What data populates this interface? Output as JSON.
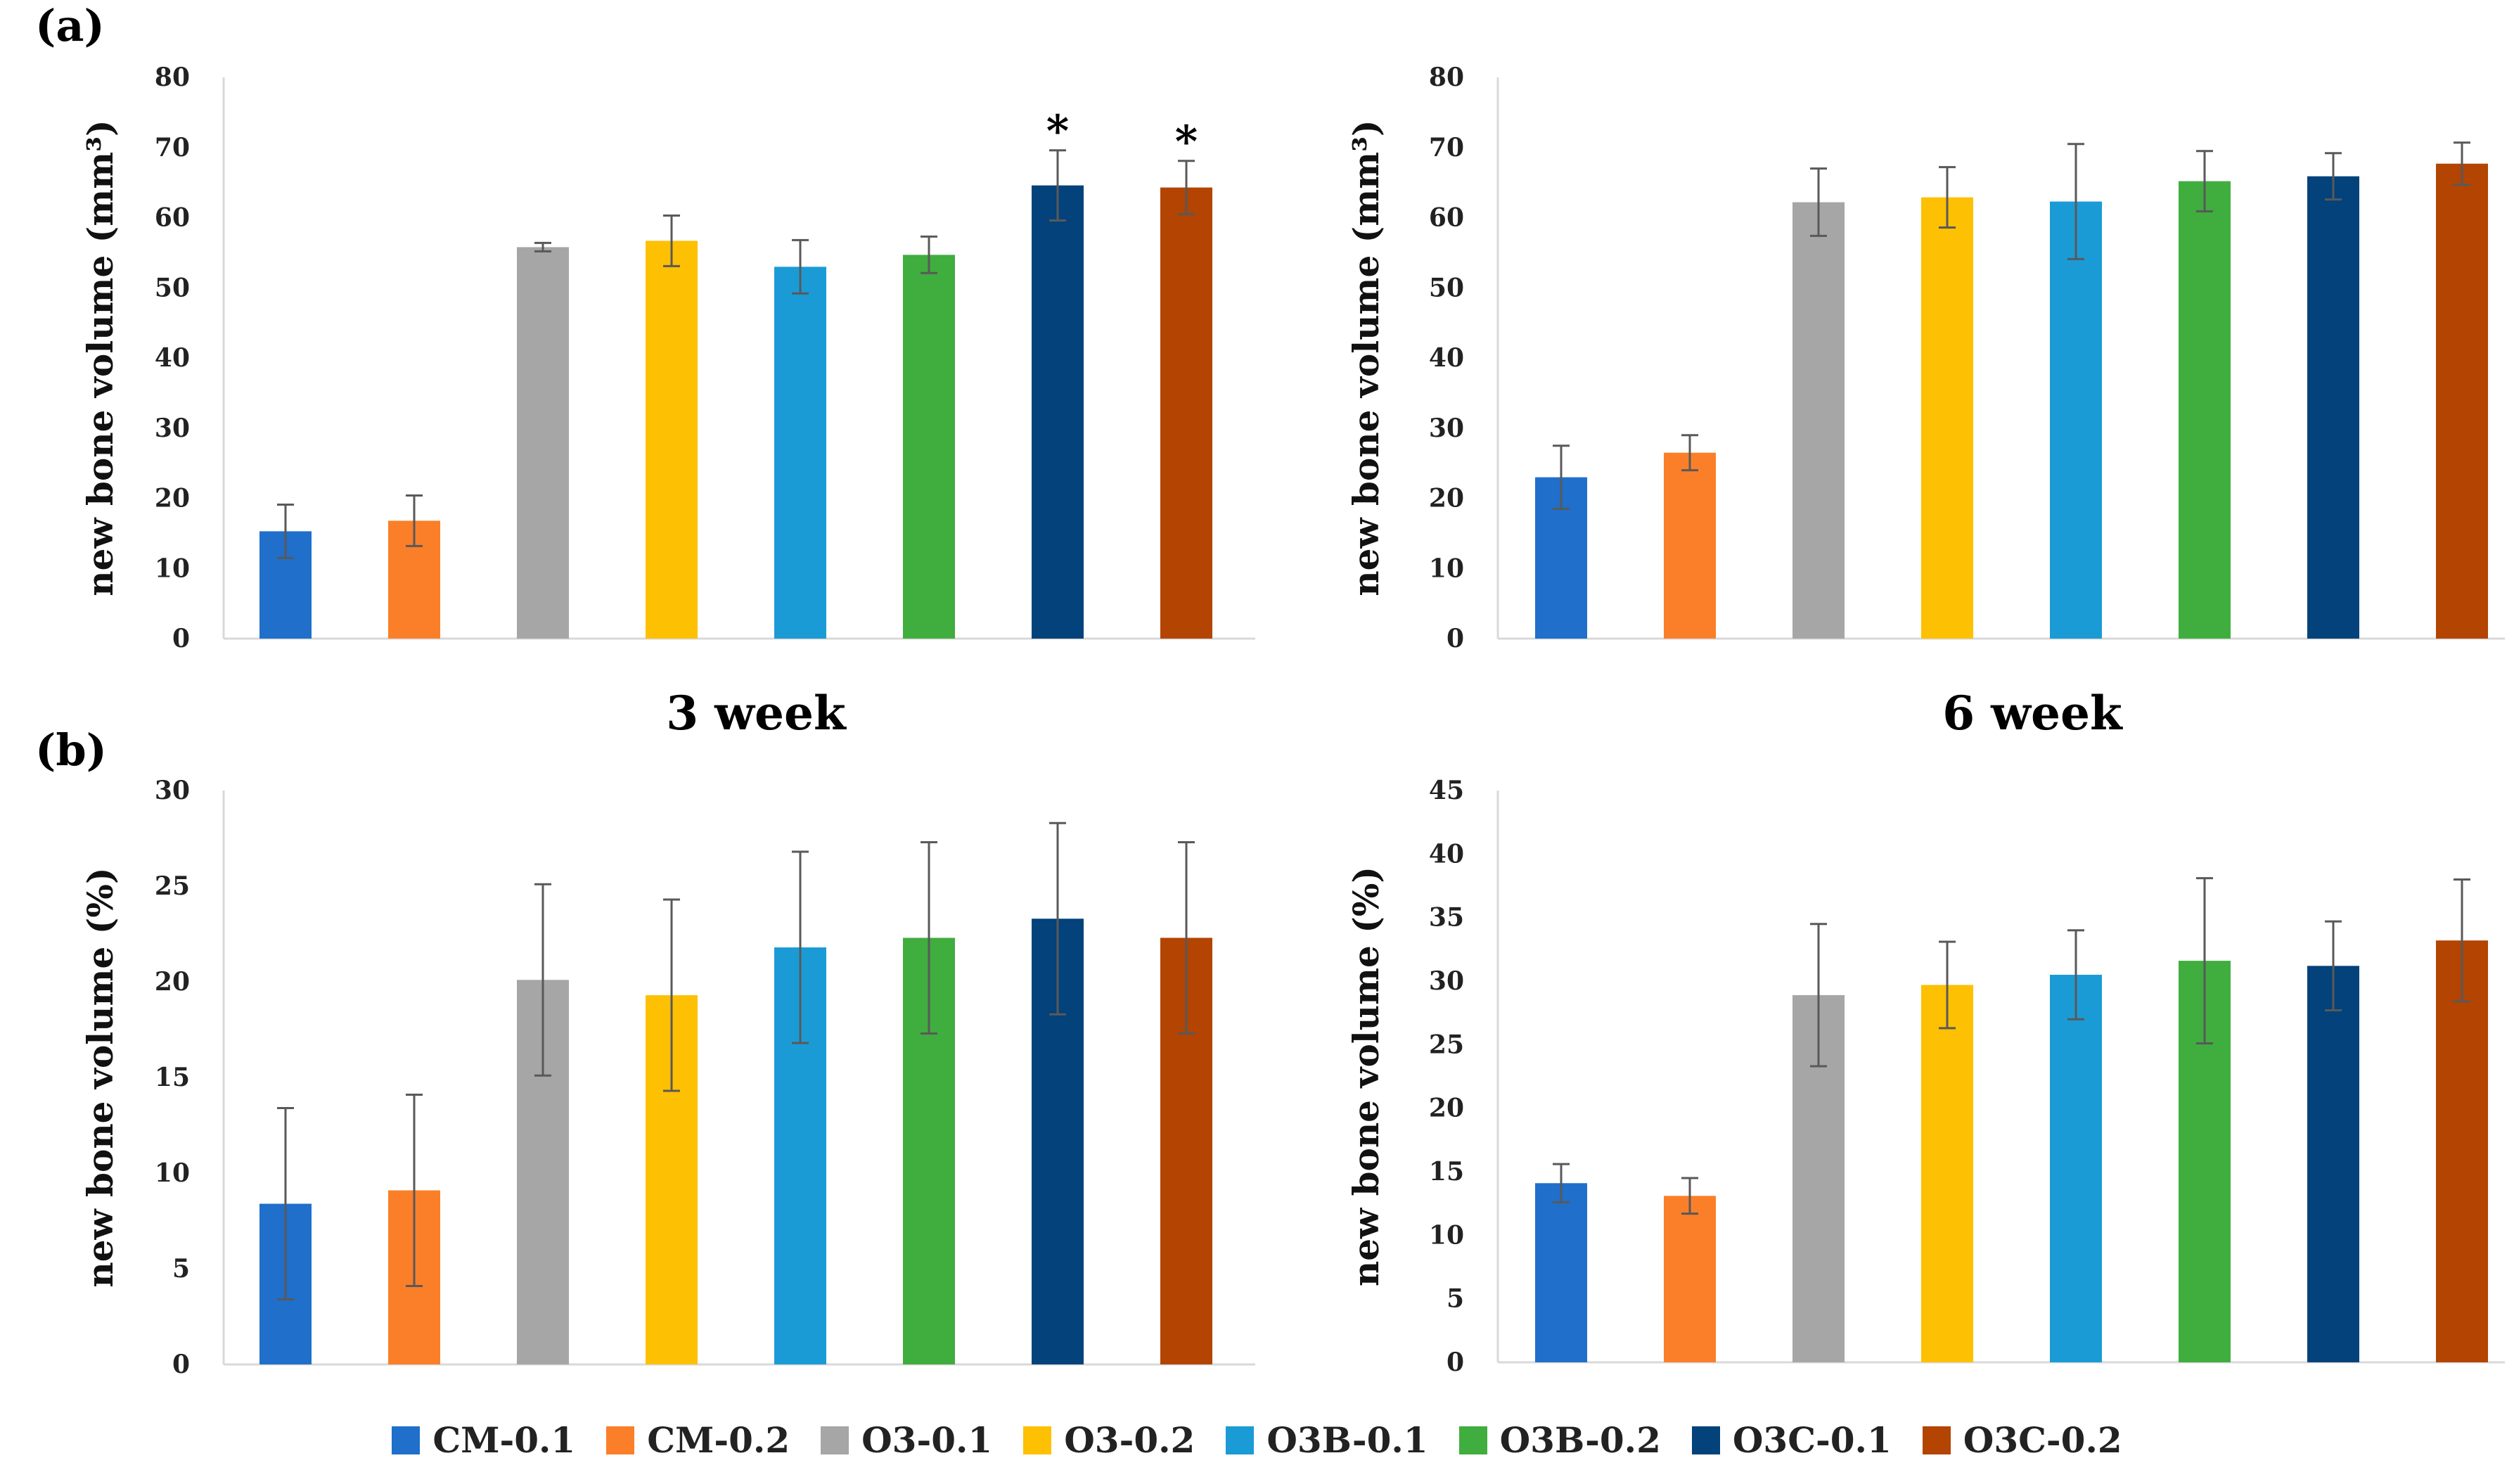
{
  "panel_labels": {
    "a": "(a)",
    "b": "(b)"
  },
  "week_labels": {
    "week3": "3 week",
    "week6": "6 week"
  },
  "series_names": [
    "CM-0.1",
    "CM-0.2",
    "O3-0.1",
    "O3-0.2",
    "O3B-0.1",
    "O3B-0.2",
    "O3C-0.1",
    "O3C-0.2"
  ],
  "colors": [
    "#1f6fcb",
    "#fb7f29",
    "#a6a6a6",
    "#fec002",
    "#1b9bd6",
    "#40ad3f",
    "#03427a",
    "#b34402"
  ],
  "chart_data": [
    {
      "id": "a-3week",
      "type": "bar",
      "ylabel": "new bone volume (mm³)",
      "ylim": [
        0,
        80
      ],
      "ytick_step": 10,
      "yticks": [
        "0",
        "10",
        "20",
        "30",
        "40",
        "50",
        "60",
        "70",
        "80"
      ],
      "categories": [
        "CM-0.1",
        "CM-0.2",
        "O3-0.1",
        "O3-0.2",
        "O3B-0.1",
        "O3B-0.2",
        "O3C-0.1",
        "O3C-0.2"
      ],
      "values": [
        15.3,
        16.8,
        55.8,
        56.7,
        53.0,
        54.7,
        64.6,
        64.3
      ],
      "errors": [
        3.8,
        3.6,
        0.6,
        3.6,
        3.8,
        2.6,
        5.0,
        3.8
      ],
      "annotations": [
        "",
        "",
        "",
        "",
        "",
        "",
        "*",
        "*"
      ]
    },
    {
      "id": "a-6week",
      "type": "bar",
      "ylabel": "new bone volume (mm³)",
      "ylim": [
        0,
        80
      ],
      "ytick_step": 10,
      "yticks": [
        "0",
        "10",
        "20",
        "30",
        "40",
        "50",
        "60",
        "70",
        "80"
      ],
      "categories": [
        "CM-0.1",
        "CM-0.2",
        "O3-0.1",
        "O3-0.2",
        "O3B-0.1",
        "O3B-0.2",
        "O3C-0.1",
        "O3C-0.2"
      ],
      "values": [
        23.0,
        26.5,
        62.2,
        62.9,
        62.3,
        65.2,
        65.9,
        67.7
      ],
      "errors": [
        4.5,
        2.5,
        4.8,
        4.3,
        8.2,
        4.3,
        3.3,
        3.0
      ],
      "annotations": [
        "",
        "",
        "",
        "",
        "",
        "",
        "",
        ""
      ]
    },
    {
      "id": "b-3week",
      "type": "bar",
      "ylabel": "new bone volume (%)",
      "ylim": [
        0,
        30
      ],
      "ytick_step": 5,
      "yticks": [
        "0",
        "5",
        "10",
        "15",
        "20",
        "25",
        "30"
      ],
      "categories": [
        "CM-0.1",
        "CM-0.2",
        "O3-0.1",
        "O3-0.2",
        "O3B-0.1",
        "O3B-0.2",
        "O3C-0.1",
        "O3C-0.2"
      ],
      "values": [
        8.4,
        9.1,
        20.1,
        19.3,
        21.8,
        22.3,
        23.3,
        22.3
      ],
      "errors": [
        5.0,
        5.0,
        5.0,
        5.0,
        5.0,
        5.0,
        5.0,
        5.0
      ],
      "annotations": [
        "",
        "",
        "",
        "",
        "",
        "",
        "",
        ""
      ]
    },
    {
      "id": "b-6week",
      "type": "bar",
      "ylabel": "new bone volume (%)",
      "ylim": [
        0,
        45
      ],
      "ytick_step": 5,
      "yticks": [
        "0",
        "5",
        "10",
        "15",
        "20",
        "25",
        "30",
        "35",
        "40",
        "45"
      ],
      "categories": [
        "CM-0.1",
        "CM-0.2",
        "O3-0.1",
        "O3-0.2",
        "O3B-0.1",
        "O3B-0.2",
        "O3C-0.1",
        "O3C-0.2"
      ],
      "values": [
        14.1,
        13.1,
        28.9,
        29.7,
        30.5,
        31.6,
        31.2,
        33.2
      ],
      "errors": [
        1.5,
        1.4,
        5.6,
        3.4,
        3.5,
        6.5,
        3.5,
        4.8
      ],
      "annotations": [
        "",
        "",
        "",
        "",
        "",
        "",
        "",
        ""
      ]
    }
  ]
}
